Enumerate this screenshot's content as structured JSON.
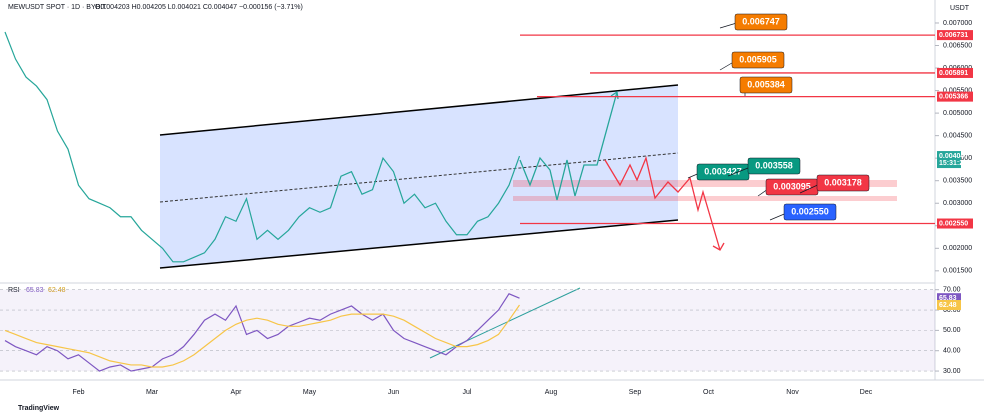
{
  "chart_data": [
    {
      "type": "line",
      "title": "MEWUSDT SPOT · 1D · BYBIT",
      "ohlc_text": "O0.004203 H0.004205 L0.004021 C0.004047 −0.000156 (−3.71%)",
      "currency": "USDT",
      "categories": [
        null,
        null,
        null,
        null,
        null,
        null,
        null,
        "Feb",
        null,
        null,
        null,
        null,
        null,
        null,
        "Mar",
        null,
        null,
        null,
        null,
        null,
        null,
        null,
        "Apr",
        null,
        null,
        null,
        null,
        null,
        null,
        "May",
        null,
        null,
        null,
        null,
        null,
        null,
        null,
        "Jun",
        null,
        null,
        null,
        null,
        null,
        null,
        "Jul",
        null,
        null,
        null,
        null,
        null,
        null,
        null,
        "Aug",
        null,
        null,
        null,
        null,
        null,
        null,
        null,
        "Sep",
        null,
        null,
        null,
        null,
        null,
        null,
        "Oct",
        null,
        null,
        null,
        null,
        null,
        null,
        null,
        "Nov",
        null,
        null,
        null,
        null,
        null,
        null,
        "Dec",
        null,
        null,
        null,
        null,
        null,
        null
      ],
      "series": [
        {
          "color": "#26a69a",
          "values": [
            0.0068,
            0.0062,
            0.0058,
            0.0056,
            0.0053,
            0.0046,
            0.0042,
            0.0034,
            0.0031,
            0.003,
            0.0029,
            0.0027,
            0.0027,
            0.0024,
            0.0022,
            0.002,
            0.0017,
            0.0017,
            0.0018,
            0.0019,
            0.0022,
            0.0027,
            0.0026,
            0.0031,
            0.0022,
            0.0024,
            0.0022,
            0.0024,
            0.0027,
            0.0029,
            0.0028,
            0.0029,
            0.0036,
            0.0037,
            0.0032,
            0.0033,
            0.004,
            0.0037,
            0.003,
            0.0032,
            0.0029,
            0.003,
            0.0026,
            0.0023,
            0.0023,
            0.0026,
            0.0027,
            0.003,
            0.0034,
            0.004047,
            null,
            null,
            null,
            null,
            null,
            null,
            null,
            null,
            null,
            null,
            null,
            null,
            null,
            null,
            null,
            null,
            null,
            null,
            null,
            null,
            null,
            null,
            null,
            null,
            null,
            null,
            null,
            null,
            null,
            null,
            null,
            null,
            null,
            null,
            null,
            null,
            null,
            null,
            null
          ]
        }
      ],
      "ylim": [
        0.00123,
        0.00751
      ],
      "yticks": [
        {
          "value": 0.0015,
          "label": "0.001500"
        },
        {
          "value": 0.002,
          "label": "0.002000"
        },
        {
          "value": 0.0025,
          "label": "0.002500"
        },
        {
          "value": 0.003,
          "label": "0.003000"
        },
        {
          "value": 0.0035,
          "label": "0.003500"
        },
        {
          "value": 0.004,
          "label": "0.004000"
        },
        {
          "value": 0.0045,
          "label": "0.004500"
        },
        {
          "value": 0.005,
          "label": "0.005000"
        },
        {
          "value": 0.0055,
          "label": "0.005500"
        },
        {
          "value": 0.006,
          "label": "0.006000"
        },
        {
          "value": 0.0065,
          "label": "0.006500"
        },
        {
          "value": 0.007,
          "label": "0.007000"
        }
      ],
      "grid": false,
      "levels": [
        {
          "value": 0.006731,
          "label": "0.006731"
        },
        {
          "value": 0.005891,
          "label": "0.005891"
        },
        {
          "value": 0.005366,
          "label": "0.005366"
        },
        {
          "value": 0.00255,
          "label": "0.002550"
        }
      ],
      "level_color": "#f23645",
      "countdown": "15:31:25",
      "annotations": [
        {
          "text": "0.006747",
          "color": "#f57c00"
        },
        {
          "text": "0.005905",
          "color": "#f57c00"
        },
        {
          "text": "0.005384",
          "color": "#f57c00"
        },
        {
          "text": "0.003427",
          "color": "#089981"
        },
        {
          "text": "0.003558",
          "color": "#089981"
        },
        {
          "text": "0.003095",
          "color": "#f23645"
        },
        {
          "text": "0.003178",
          "color": "#f23645"
        },
        {
          "text": "0.002550",
          "color": "#2962ff"
        }
      ]
    },
    {
      "type": "line",
      "title": "RSI",
      "series": [
        {
          "color": "#7e57c2",
          "values": [
            45,
            42,
            40,
            38,
            42,
            40,
            36,
            38,
            34,
            30,
            32,
            33,
            30,
            31,
            32,
            36,
            38,
            42,
            48,
            55,
            58,
            55,
            62,
            48,
            50,
            46,
            48,
            52,
            54,
            56,
            55,
            58,
            60,
            62,
            58,
            55,
            58,
            50,
            46,
            44,
            42,
            40,
            38,
            42,
            45,
            50,
            55,
            60,
            68,
            65.83,
            null,
            null,
            null,
            null,
            null,
            null,
            null,
            null,
            null,
            null,
            null,
            null,
            null,
            null,
            null,
            null,
            null,
            null,
            null,
            null,
            null,
            null,
            null,
            null,
            null,
            null,
            null,
            null,
            null,
            null,
            null,
            null,
            null,
            null,
            null,
            null,
            null,
            null,
            null
          ]
        },
        {
          "color": "#f7c548",
          "values": [
            50,
            48,
            46,
            44,
            43,
            42,
            41,
            40,
            39,
            37,
            35,
            34,
            33,
            33,
            32,
            32,
            33,
            35,
            38,
            42,
            46,
            50,
            53,
            55,
            56,
            55,
            53,
            52,
            52,
            53,
            54,
            55,
            57,
            58,
            58,
            58,
            58,
            57,
            55,
            52,
            49,
            46,
            44,
            42,
            42,
            43,
            45,
            48,
            55,
            62.48,
            null,
            null,
            null,
            null,
            null,
            null,
            null,
            null,
            null,
            null,
            null,
            null,
            null,
            null,
            null,
            null,
            null,
            null,
            null,
            null,
            null,
            null,
            null,
            null,
            null,
            null,
            null,
            null,
            null,
            null,
            null,
            null,
            null,
            null,
            null,
            null,
            null,
            null,
            null
          ]
        }
      ],
      "ylim": [
        25.6,
        73.3
      ],
      "yticks": [
        {
          "value": 30,
          "label": "30.00"
        },
        {
          "value": 40,
          "label": "40.00"
        },
        {
          "value": 50,
          "label": "50.00"
        },
        {
          "value": 60,
          "label": "60.00"
        },
        {
          "value": 70,
          "label": "70.00"
        }
      ],
      "band": [
        30,
        70
      ]
    }
  ],
  "footer": "TradingView"
}
